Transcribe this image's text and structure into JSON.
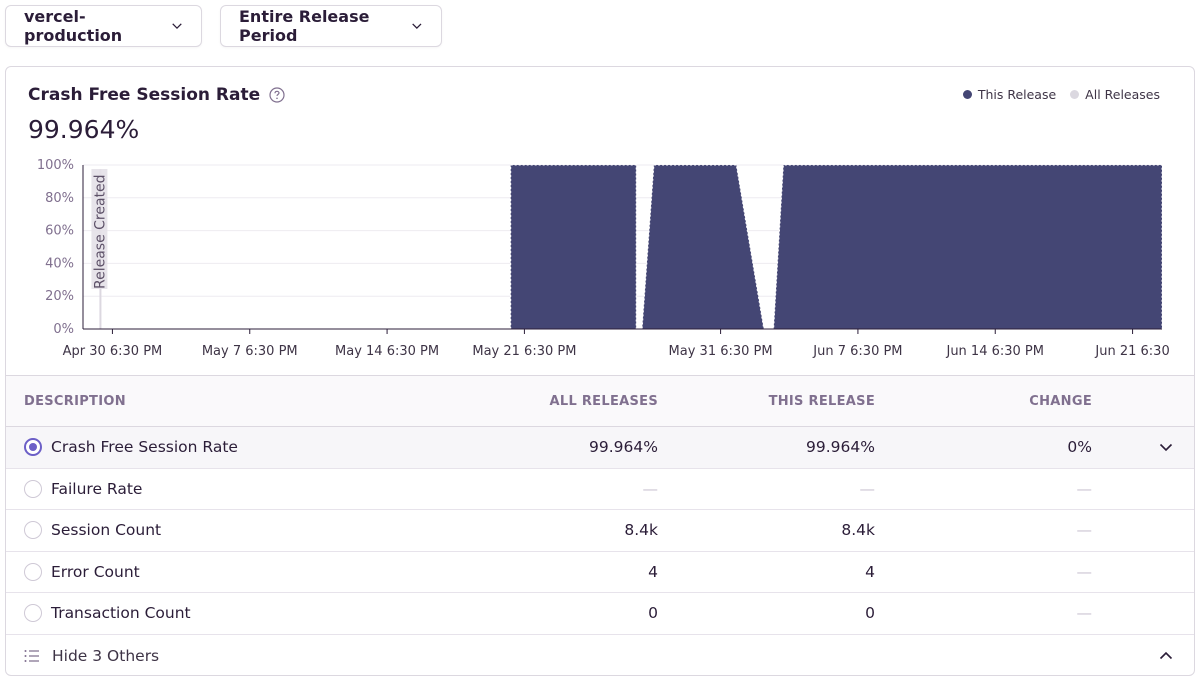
{
  "filters": {
    "environment": "vercel-production",
    "period": "Entire Release Period"
  },
  "chart": {
    "title": "Crash Free Session Rate",
    "value": "99.964%",
    "legend": [
      {
        "label": "This Release",
        "color": "#444674"
      },
      {
        "label": "All Releases",
        "color": "#dbd8e0"
      }
    ],
    "marker_label": "Release Created",
    "colors": {
      "area": "#444674",
      "grid": "#eeebf1",
      "axis": "#2b1d38",
      "text": "#80708f",
      "marker": "#dcd8e0"
    }
  },
  "chart_data": {
    "type": "area",
    "title": "Crash Free Session Rate",
    "ylabel": "",
    "xlabel": "",
    "ylim": [
      0,
      100
    ],
    "y_ticks": [
      "0%",
      "20%",
      "40%",
      "60%",
      "80%",
      "100%"
    ],
    "y_tick_values": [
      0,
      20,
      40,
      60,
      80,
      100
    ],
    "x_tick_labels": [
      "Apr 30 6:30 PM",
      "May 7 6:30 PM",
      "May 14 6:30 PM",
      "May 21 6:30 PM",
      "May 31 6:30 PM",
      "Jun 7 6:30 PM",
      "Jun 14 6:30 PM",
      "Jun 21 6:30"
    ],
    "x_tick_days": [
      0,
      7,
      14,
      21,
      31,
      38,
      45,
      52
    ],
    "x_range_days": [
      -1.5,
      53.5
    ],
    "series": [
      {
        "name": "This Release",
        "points": [
          [
            20.3,
            0
          ],
          [
            20.3,
            100
          ],
          [
            26.7,
            100
          ],
          [
            26.7,
            0
          ],
          [
            27.0,
            0
          ],
          [
            27.6,
            100
          ],
          [
            31.8,
            100
          ],
          [
            33.2,
            0
          ],
          [
            33.7,
            0
          ],
          [
            34.2,
            100
          ],
          [
            53.5,
            100
          ],
          [
            53.5,
            0
          ]
        ]
      }
    ],
    "marker_day": 0
  },
  "table": {
    "headers": {
      "description": "DESCRIPTION",
      "all": "ALL RELEASES",
      "this": "THIS RELEASE",
      "change": "CHANGE"
    },
    "rows": [
      {
        "label": "Crash Free Session Rate",
        "all": "99.964%",
        "this": "99.964%",
        "change": "0%"
      },
      {
        "label": "Failure Rate",
        "all": "—",
        "this": "—",
        "change": "—"
      },
      {
        "label": "Session Count",
        "all": "8.4k",
        "this": "8.4k",
        "change": "—"
      },
      {
        "label": "Error Count",
        "all": "4",
        "this": "4",
        "change": "—"
      },
      {
        "label": "Transaction Count",
        "all": "0",
        "this": "0",
        "change": "—"
      }
    ],
    "footer": "Hide 3 Others"
  }
}
